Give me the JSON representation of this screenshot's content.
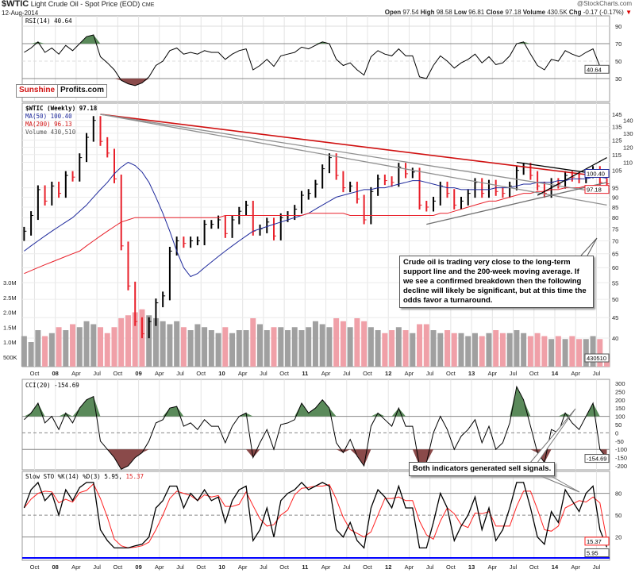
{
  "header": {
    "symbol": "$WTIC",
    "name": "Light Crude Oil - Spot Price (EOD)",
    "exchange": "CME",
    "date": "12-Aug-2014",
    "copyright": "@StockCharts.com",
    "open_label": "Open",
    "open": "97.54",
    "high_label": "High",
    "high": "98.58",
    "low_label": "Low",
    "low": "96.81",
    "close_label": "Close",
    "close": "97.18",
    "volume_label": "Volume",
    "volume": "430.5K",
    "chg_label": "Chg",
    "chg": "-0.17 (-0.17%)",
    "chg_arrow": "▼"
  },
  "logo": {
    "part1": "Sunshine",
    "part2": "Profits.com"
  },
  "legends": {
    "rsi": "RSI(14) 40.64",
    "price": "$WTIC (Weekly) 97.18",
    "ma50": "MA(50) 100.40",
    "ma200": "MA(200) 96.13",
    "volume": "Volume 430,510",
    "cci": "CCI(20) -154.69",
    "sto_prefix": "Slow STO %K(14) %D(3) 5.95,",
    "sto_d": "15.37"
  },
  "annotations": {
    "main": "Crude oil is trading very close to the long-term support line and the 200-week moving average. If we see a confirmed breakdown then the following decline will likely be significant, but at this time the odds favor a turnaround.",
    "indicators": "Both indicators generated sell signals."
  },
  "colors": {
    "up": "#000000",
    "down": "#e8202a",
    "ma50": "#1f2a9c",
    "ma200": "#e8202a",
    "vol_up": "#a0a0a0",
    "vol_down": "#f0a0a8",
    "overbought": "#5a8a5a",
    "oversold": "#8a4a4a",
    "sto_d": "#ff2020",
    "baseline": "#0000ff"
  },
  "chart_data": {
    "type": "line",
    "start_month": "Aug 2007",
    "x_labels": [
      "Oct",
      "08",
      "Apr",
      "Jul",
      "Oct",
      "09",
      "Apr",
      "Jul",
      "Oct",
      "10",
      "Apr",
      "Jul",
      "Oct",
      "11",
      "Apr",
      "Jul",
      "Oct",
      "12",
      "Apr",
      "Jul",
      "Oct",
      "13",
      "Apr",
      "Jul",
      "Oct",
      "14",
      "Apr",
      "Jul"
    ],
    "price": {
      "ticks": [
        145,
        140,
        135,
        130,
        125,
        120,
        115,
        110,
        105,
        95,
        90,
        85,
        80,
        75,
        70,
        65,
        60,
        55,
        50,
        45,
        40
      ],
      "last_labels": {
        "ma50": "100.40",
        "close": "97.18",
        "volume": "430510"
      },
      "close": [
        74,
        81,
        94,
        88,
        96,
        92,
        102,
        101,
        113,
        127,
        140,
        124,
        116,
        100,
        68,
        54,
        44,
        41,
        44,
        49,
        51,
        66,
        70,
        69,
        70,
        70,
        77,
        77,
        79,
        73,
        79,
        83,
        86,
        74,
        75,
        78,
        72,
        80,
        81,
        84,
        91,
        92,
        97,
        106,
        113,
        102,
        95,
        96,
        89,
        79,
        93,
        100,
        99,
        98,
        107,
        103,
        104,
        86,
        85,
        88,
        96,
        92,
        86,
        88,
        92,
        98,
        92,
        97,
        93,
        92,
        96,
        105,
        107,
        102,
        96,
        92,
        98,
        97,
        102,
        101,
        100,
        103,
        105,
        98,
        97.18
      ],
      "ma50": [
        66,
        68,
        70,
        72,
        74,
        76,
        78,
        80,
        83,
        86,
        90,
        94,
        98,
        103,
        107,
        110,
        108,
        104,
        98,
        90,
        82,
        74,
        66,
        60,
        57,
        58,
        60,
        62,
        64,
        66,
        68,
        70,
        72,
        74,
        75,
        76,
        77,
        78,
        79,
        80,
        81,
        82,
        84,
        86,
        88,
        90,
        91,
        92,
        93,
        94,
        94,
        95,
        95,
        96,
        97,
        98,
        99,
        99,
        98,
        97,
        96,
        95,
        95,
        94,
        94,
        94,
        94,
        94,
        95,
        95,
        95,
        96,
        97,
        97,
        98,
        98,
        98,
        99,
        99,
        100,
        100,
        100,
        101,
        101,
        100.4
      ],
      "ma200": [
        58,
        59,
        60,
        61,
        62,
        63,
        64,
        65,
        66,
        68,
        70,
        72,
        74,
        76,
        78,
        79,
        80,
        80,
        80,
        80,
        80,
        80,
        80,
        80,
        80,
        80,
        80,
        80,
        80,
        81,
        81,
        81,
        81,
        81,
        81,
        81,
        81,
        81,
        81,
        81,
        81,
        82,
        82,
        82,
        82,
        82,
        82,
        81,
        81,
        81,
        81,
        81,
        81,
        81,
        81,
        81,
        81,
        81,
        81,
        81,
        82,
        82,
        83,
        84,
        85,
        86,
        87,
        88,
        88,
        89,
        90,
        91,
        92,
        92,
        93,
        93,
        94,
        94,
        95,
        95,
        95,
        96,
        96,
        96,
        96.13
      ],
      "trendlines": [
        {
          "name": "long-term-resistance",
          "color": "#d01010",
          "points": [
            [
              11,
              145
            ],
            [
              84,
              101
            ]
          ]
        },
        {
          "name": "declining-line-1",
          "color": "#909090",
          "points": [
            [
              11,
              145
            ],
            [
              84,
              92
            ]
          ]
        },
        {
          "name": "declining-line-2",
          "color": "#909090",
          "points": [
            [
              11,
              145
            ],
            [
              84,
              86
            ]
          ]
        },
        {
          "name": "long-term-support",
          "color": "#707070",
          "points": [
            [
              58,
              77
            ],
            [
              84,
              98
            ]
          ]
        },
        {
          "name": "short-term-resistance",
          "color": "#000000",
          "points": [
            [
              71,
              110
            ],
            [
              84,
              102
            ]
          ]
        },
        {
          "name": "short-term-support",
          "color": "#000000",
          "points": [
            [
              74,
              91
            ],
            [
              84,
              113
            ]
          ]
        }
      ]
    },
    "volume": {
      "unit": "M",
      "ticks": [
        "3.0M",
        "2.5M",
        "2.0M",
        "1.5M",
        "1.0M",
        "500K"
      ],
      "tick_values": [
        3,
        2.5,
        2,
        1.5,
        1,
        0.5
      ],
      "values": [
        1.2,
        1.0,
        1.4,
        1.2,
        1.3,
        1.5,
        1.4,
        1.6,
        1.5,
        1.7,
        1.6,
        1.5,
        1.3,
        1.5,
        1.8,
        1.9,
        2.0,
        2.1,
        1.9,
        1.8,
        1.7,
        1.6,
        1.7,
        1.5,
        1.4,
        1.6,
        1.5,
        1.4,
        1.3,
        1.5,
        1.3,
        1.4,
        1.4,
        1.8,
        1.6,
        1.4,
        1.5,
        1.5,
        1.4,
        1.5,
        1.4,
        1.5,
        1.7,
        1.6,
        1.5,
        1.8,
        1.7,
        1.5,
        1.8,
        1.7,
        1.5,
        1.4,
        1.3,
        1.4,
        1.5,
        1.4,
        1.3,
        1.6,
        1.6,
        1.4,
        1.3,
        1.4,
        1.3,
        1.3,
        1.2,
        1.3,
        1.2,
        1.3,
        1.4,
        1.3,
        1.3,
        1.4,
        1.3,
        1.2,
        1.3,
        1.2,
        1.1,
        1.2,
        1.1,
        1.2,
        1.1,
        1.1,
        1.2,
        1.1,
        0.43
      ]
    },
    "rsi": {
      "ticks": [
        90,
        70,
        50,
        30
      ],
      "range": [
        10,
        100
      ],
      "last_label": "40.64",
      "values": [
        60,
        65,
        72,
        60,
        65,
        58,
        68,
        62,
        70,
        78,
        80,
        55,
        48,
        40,
        28,
        24,
        22,
        25,
        32,
        45,
        50,
        62,
        65,
        58,
        60,
        58,
        62,
        60,
        60,
        52,
        58,
        62,
        64,
        40,
        45,
        52,
        44,
        56,
        58,
        60,
        66,
        64,
        68,
        72,
        70,
        52,
        45,
        48,
        40,
        34,
        55,
        62,
        58,
        56,
        64,
        56,
        56,
        32,
        30,
        45,
        56,
        50,
        42,
        48,
        52,
        58,
        48,
        55,
        46,
        48,
        56,
        70,
        72,
        58,
        45,
        40,
        52,
        50,
        62,
        58,
        55,
        60,
        64,
        44,
        40.64
      ]
    },
    "cci": {
      "ticks": [
        300,
        250,
        200,
        150,
        100,
        50,
        0,
        -50,
        -100,
        -150,
        -200
      ],
      "last_label": "-154.69",
      "values": [
        80,
        120,
        180,
        60,
        100,
        20,
        120,
        60,
        150,
        200,
        220,
        -50,
        -100,
        -150,
        -220,
        -200,
        -150,
        -120,
        -50,
        60,
        80,
        150,
        160,
        40,
        60,
        20,
        80,
        40,
        40,
        -60,
        40,
        100,
        120,
        -150,
        -60,
        20,
        -100,
        50,
        60,
        80,
        180,
        120,
        150,
        200,
        150,
        -60,
        -120,
        -40,
        -140,
        -200,
        40,
        120,
        80,
        40,
        150,
        40,
        40,
        -200,
        -180,
        0,
        100,
        20,
        -100,
        -20,
        20,
        80,
        -60,
        40,
        -100,
        -60,
        60,
        280,
        200,
        40,
        -120,
        -180,
        20,
        0,
        120,
        60,
        20,
        100,
        180,
        -100,
        -154.69
      ]
    },
    "sto": {
      "ticks": [
        80,
        50,
        20
      ],
      "last_k_label": "5.95",
      "last_d_label": "15.37",
      "k": [
        60,
        85,
        95,
        70,
        80,
        50,
        85,
        70,
        88,
        95,
        95,
        30,
        15,
        5,
        5,
        5,
        8,
        10,
        20,
        60,
        70,
        90,
        90,
        60,
        80,
        70,
        85,
        70,
        75,
        40,
        70,
        85,
        90,
        15,
        30,
        60,
        20,
        70,
        80,
        85,
        95,
        85,
        90,
        95,
        90,
        30,
        20,
        40,
        15,
        5,
        60,
        85,
        75,
        60,
        90,
        60,
        60,
        5,
        5,
        40,
        80,
        60,
        15,
        35,
        50,
        75,
        30,
        60,
        15,
        30,
        60,
        95,
        95,
        60,
        20,
        10,
        55,
        40,
        85,
        70,
        55,
        80,
        90,
        30,
        5.95
      ],
      "d": [
        60,
        72,
        80,
        83,
        82,
        67,
        72,
        68,
        81,
        84,
        93,
        73,
        47,
        17,
        8,
        5,
        6,
        8,
        13,
        30,
        50,
        73,
        83,
        80,
        77,
        70,
        78,
        75,
        77,
        62,
        62,
        65,
        82,
        63,
        45,
        35,
        37,
        50,
        57,
        78,
        87,
        88,
        90,
        90,
        92,
        72,
        47,
        30,
        25,
        20,
        27,
        50,
        73,
        73,
        75,
        70,
        70,
        42,
        23,
        17,
        42,
        60,
        52,
        37,
        33,
        53,
        52,
        55,
        35,
        35,
        35,
        62,
        83,
        83,
        58,
        30,
        28,
        35,
        60,
        65,
        70,
        68,
        75,
        67,
        15.37
      ]
    }
  }
}
